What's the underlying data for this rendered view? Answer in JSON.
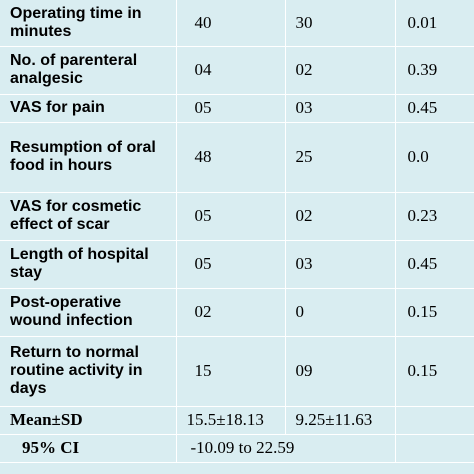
{
  "rows": [
    {
      "label": "Operating time in minutes",
      "group1": "40",
      "group2": "30",
      "p": "0.01"
    },
    {
      "label": "No. of parenteral analgesic",
      "group1": "04",
      "group2": "02",
      "p": "0.39"
    },
    {
      "label": "VAS for pain",
      "group1": "05",
      "group2": "03",
      "p": "0.45"
    },
    {
      "label": "Resumption of oral food in hours",
      "group1": "48",
      "group2": "25",
      "p": "0.0"
    },
    {
      "label": "VAS for cosmetic effect of scar",
      "group1": "05",
      "group2": "02",
      "p": "0.23"
    },
    {
      "label": "Length of hospital stay",
      "group1": "05",
      "group2": "03",
      "p": "0.45"
    },
    {
      "label": "Post-operative wound infection",
      "group1": "02",
      "group2": "0",
      "p": "0.15"
    },
    {
      "label": "Return to normal routine activity in days",
      "group1": "15",
      "group2": "09",
      "p": "0.15"
    }
  ],
  "mean_sd": {
    "label": "Mean±SD",
    "group1": "15.5±18.13",
    "group2": "9.25±11.63",
    "p": ""
  },
  "ci": {
    "label": "95% CI",
    "value": "-10.09 to 22.59"
  },
  "colors": {
    "background": "#d9edf1",
    "grid": "#ffffff"
  }
}
